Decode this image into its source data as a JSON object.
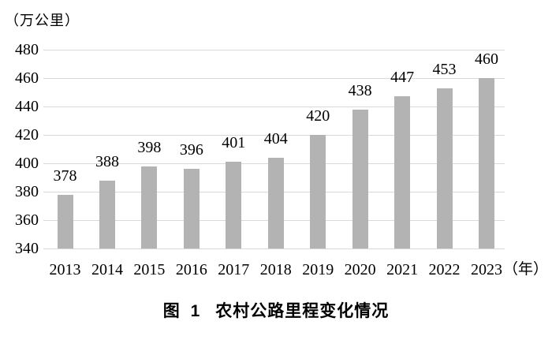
{
  "chart_data": {
    "type": "bar",
    "title": "图 1 农村公路里程变化情况",
    "unit_label": "（万公里）",
    "x_axis_suffix": "（年）",
    "categories": [
      "2013",
      "2014",
      "2015",
      "2016",
      "2017",
      "2018",
      "2019",
      "2020",
      "2021",
      "2022",
      "2023"
    ],
    "values": [
      378,
      388,
      398,
      396,
      401,
      404,
      420,
      438,
      447,
      453,
      460
    ],
    "xlabel": "年",
    "ylabel": "万公里",
    "ylim": [
      340,
      480
    ],
    "ytick_step": 20,
    "grid": "horizontal",
    "legend": "none",
    "bar_color": "#b3b3b3",
    "gridline_color": "#d9d9d9",
    "text_color": "#000000"
  },
  "caption": {
    "figure_label": "图 1",
    "title": "农村公路里程变化情况"
  }
}
